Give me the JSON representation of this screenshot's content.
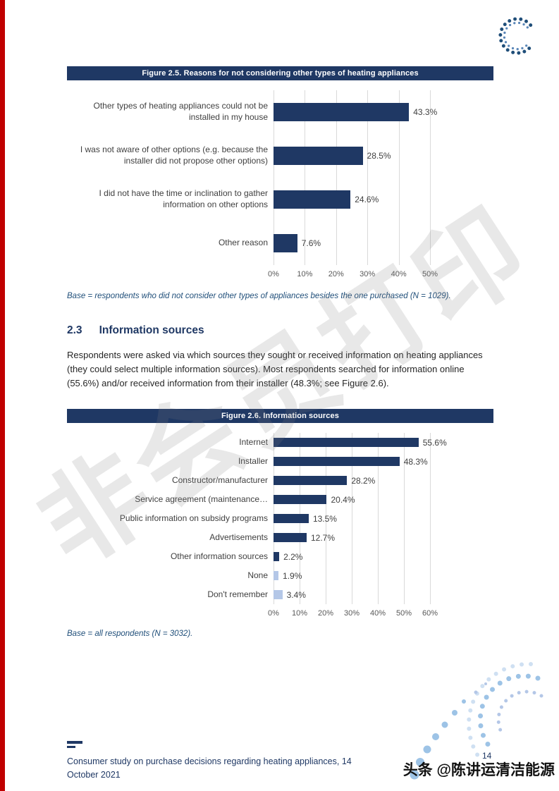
{
  "colors": {
    "navy": "#1f3864",
    "light_bar": "#b4c7e7",
    "red_strip": "#c00000",
    "note_blue": "#1f4e79",
    "logo_blue": "#1f4e79",
    "decoration_blue": "#9dc3e6"
  },
  "figure_2_5": {
    "header": "Figure 2.5. Reasons for not considering other types of heating appliances",
    "base_note": "Base = respondents who did not consider other types of appliances besides the one purchased (N = 1029)."
  },
  "section_2_3": {
    "number": "2.3",
    "title": "Information sources",
    "body": "Respondents were asked via which sources they sought or received information on heating appliances (they could select multiple information sources). Most respondents searched for information online (55.6%) and/or received information from their installer (48.3%; see Figure 2.6)."
  },
  "figure_2_6": {
    "header": "Figure 2.6. Information sources",
    "base_note": "Base = all respondents (N = 3032)."
  },
  "footer": {
    "line1": "Consumer study on purchase decisions regarding heating appliances, 14",
    "line2": "October 2021",
    "page_number": "14"
  },
  "watermark_text": "非会员打印",
  "credit_overlay": "头条 @陈讲运清洁能源",
  "chart_data": [
    {
      "type": "bar",
      "orientation": "horizontal",
      "title": "Figure 2.5. Reasons for not considering other types of heating appliances",
      "categories": [
        "Other types of heating appliances could not be installed in my house",
        "I was not aware of other options (e.g. because the installer did not propose other options)",
        "I did not have the time or inclination to gather information on other options",
        "Other reason"
      ],
      "values": [
        43.3,
        28.5,
        24.6,
        7.6
      ],
      "value_labels": [
        "43.3%",
        "28.5%",
        "24.6%",
        "7.6%"
      ],
      "xlim": [
        0,
        50
      ],
      "ticks": [
        "0%",
        "10%",
        "20%",
        "30%",
        "40%",
        "50%"
      ],
      "grid": true,
      "legend": "none",
      "bar_color": "#1f3864"
    },
    {
      "type": "bar",
      "orientation": "horizontal",
      "title": "Figure 2.6. Information sources",
      "categories": [
        "Internet",
        "Installer",
        "Constructor/manufacturer",
        "Service agreement (maintenance…",
        "Public information on subsidy programs",
        "Advertisements",
        "Other information sources",
        "None",
        "Don't remember"
      ],
      "values": [
        55.6,
        48.3,
        28.2,
        20.4,
        13.5,
        12.7,
        2.2,
        1.9,
        3.4
      ],
      "value_labels": [
        "55.6%",
        "48.3%",
        "28.2%",
        "20.4%",
        "13.5%",
        "12.7%",
        "2.2%",
        "1.9%",
        "3.4%"
      ],
      "xlim": [
        0,
        60
      ],
      "ticks": [
        "0%",
        "10%",
        "20%",
        "30%",
        "40%",
        "50%",
        "60%"
      ],
      "grid": true,
      "legend": "none",
      "bar_color": "#1f3864",
      "bar_colors": [
        "#1f3864",
        "#1f3864",
        "#1f3864",
        "#1f3864",
        "#1f3864",
        "#1f3864",
        "#1f3864",
        "#b4c7e7",
        "#b4c7e7"
      ]
    }
  ]
}
